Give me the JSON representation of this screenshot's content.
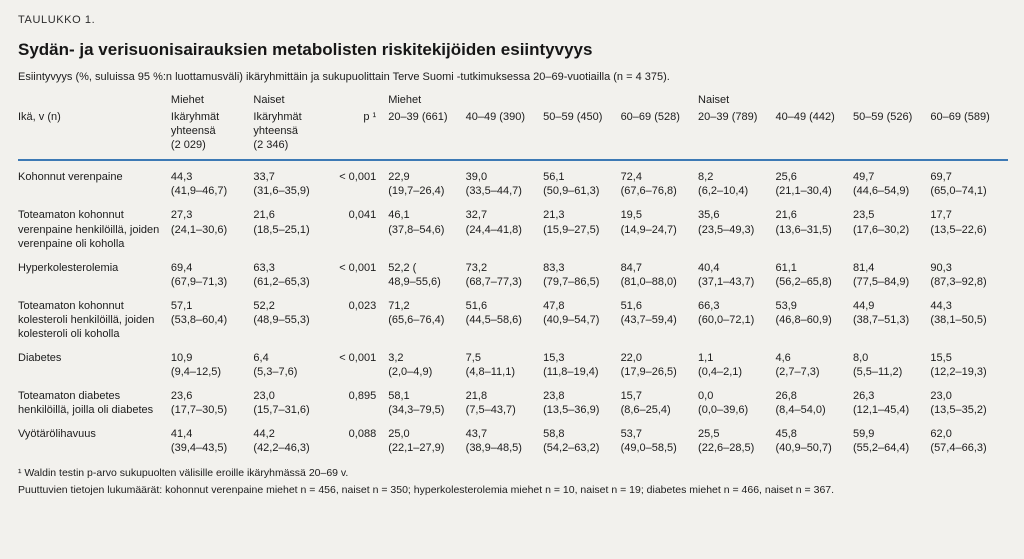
{
  "header": {
    "kicker": "TAULUKKO 1.",
    "title": "Sydän- ja verisuonisairauksien metabolisten riskitekijöiden esiintyvyys",
    "subtitle": "Esiintyvyys (%, suluissa 95 %:n luottamusväli) ikäryhmittäin ja sukupuolittain Terve Suomi -tutkimuksessa 20–69-vuotiailla (n = 4 375)."
  },
  "accent_color": "#3d79b4",
  "table": {
    "group_row": [
      {
        "label": "",
        "span": 1
      },
      {
        "label": "Miehet",
        "span": 1
      },
      {
        "label": "Naiset",
        "span": 1
      },
      {
        "label": "",
        "span": 1
      },
      {
        "label": "Miehet",
        "span": 4
      },
      {
        "label": "Naiset",
        "span": 4
      }
    ],
    "col_headers": [
      {
        "name": "col-header-age-label",
        "cls": "",
        "lines": [
          "Ikä, v (n)"
        ]
      },
      {
        "name": "col-header-men-total",
        "cls": "",
        "lines": [
          "Ikäryhmät",
          "yhteensä",
          "(2 029)"
        ]
      },
      {
        "name": "col-header-women-total",
        "cls": "",
        "lines": [
          "Ikäryhmät",
          "yhteensä",
          "(2 346)"
        ]
      },
      {
        "name": "col-header-p-value",
        "cls": "p-col",
        "lines": [
          "p ¹"
        ]
      },
      {
        "name": "col-header-men-20-39",
        "cls": "",
        "lines": [
          "20–39 (661)"
        ]
      },
      {
        "name": "col-header-men-40-49",
        "cls": "",
        "lines": [
          "40–49 (390)"
        ]
      },
      {
        "name": "col-header-men-50-59",
        "cls": "",
        "lines": [
          "50–59 (450)"
        ]
      },
      {
        "name": "col-header-men-60-69",
        "cls": "",
        "lines": [
          "60–69 (528)"
        ]
      },
      {
        "name": "col-header-women-20-39",
        "cls": "",
        "lines": [
          "20–39 (789)"
        ]
      },
      {
        "name": "col-header-women-40-49",
        "cls": "",
        "lines": [
          "40–49 (442)"
        ]
      },
      {
        "name": "col-header-women-50-59",
        "cls": "",
        "lines": [
          "50–59 (526)"
        ]
      },
      {
        "name": "col-header-women-60-69",
        "cls": "",
        "lines": [
          "60–69 (589)"
        ]
      }
    ],
    "rows": [
      {
        "label": "Kohonnut verenpaine",
        "totals": [
          {
            "v": "44,3",
            "ci": "(41,9–46,7)"
          },
          {
            "v": "33,7",
            "ci": "(31,6–35,9)"
          }
        ],
        "p": "< 0,001",
        "ages": [
          {
            "v": "22,9",
            "ci": "(19,7–26,4)"
          },
          {
            "v": "39,0",
            "ci": "(33,5–44,7)"
          },
          {
            "v": "56,1",
            "ci": "(50,9–61,3)"
          },
          {
            "v": "72,4",
            "ci": "(67,6–76,8)"
          },
          {
            "v": "8,2",
            "ci": "(6,2–10,4)"
          },
          {
            "v": "25,6",
            "ci": "(21,1–30,4)"
          },
          {
            "v": "49,7",
            "ci": "(44,6–54,9)"
          },
          {
            "v": "69,7",
            "ci": "(65,0–74,1)"
          }
        ]
      },
      {
        "label": "Toteamaton kohonnut verenpaine henkilöillä, joiden verenpaine oli koholla",
        "totals": [
          {
            "v": "27,3",
            "ci": "(24,1–30,6)"
          },
          {
            "v": "21,6",
            "ci": "(18,5–25,1)"
          }
        ],
        "p": "0,041",
        "ages": [
          {
            "v": "46,1",
            "ci": "(37,8–54,6)"
          },
          {
            "v": "32,7",
            "ci": "(24,4–41,8)"
          },
          {
            "v": "21,3",
            "ci": "(15,9–27,5)"
          },
          {
            "v": "19,5",
            "ci": "(14,9–24,7)"
          },
          {
            "v": "35,6",
            "ci": "(23,5–49,3)"
          },
          {
            "v": "21,6",
            "ci": "(13,6–31,5)"
          },
          {
            "v": "23,5",
            "ci": "(17,6–30,2)"
          },
          {
            "v": "17,7",
            "ci": "(13,5–22,6)"
          }
        ]
      },
      {
        "label": "Hyperkolesterolemia",
        "totals": [
          {
            "v": "69,4",
            "ci": "(67,9–71,3)"
          },
          {
            "v": "63,3",
            "ci": "(61,2–65,3)"
          }
        ],
        "p": "< 0,001",
        "ages": [
          {
            "v": "52,2 (",
            "ci": "48,9–55,6)"
          },
          {
            "v": "73,2",
            "ci": "(68,7–77,3)"
          },
          {
            "v": "83,3",
            "ci": "(79,7–86,5)"
          },
          {
            "v": "84,7",
            "ci": "(81,0–88,0)"
          },
          {
            "v": "40,4",
            "ci": "(37,1–43,7)"
          },
          {
            "v": "61,1",
            "ci": "(56,2–65,8)"
          },
          {
            "v": "81,4",
            "ci": "(77,5–84,9)"
          },
          {
            "v": "90,3",
            "ci": "(87,3–92,8)"
          }
        ]
      },
      {
        "label": "Toteamaton kohonnut kolesteroli henkilöillä, joiden kolesteroli oli koholla",
        "totals": [
          {
            "v": "57,1",
            "ci": "(53,8–60,4)"
          },
          {
            "v": "52,2",
            "ci": "(48,9–55,3)"
          }
        ],
        "p": "0,023",
        "ages": [
          {
            "v": "71,2",
            "ci": "(65,6–76,4)"
          },
          {
            "v": "51,6",
            "ci": "(44,5–58,6)"
          },
          {
            "v": "47,8",
            "ci": "(40,9–54,7)"
          },
          {
            "v": "51,6",
            "ci": "(43,7–59,4)"
          },
          {
            "v": "66,3",
            "ci": "(60,0–72,1)"
          },
          {
            "v": "53,9",
            "ci": "(46,8–60,9)"
          },
          {
            "v": "44,9",
            "ci": "(38,7–51,3)"
          },
          {
            "v": "44,3",
            "ci": "(38,1–50,5)"
          }
        ]
      },
      {
        "label": "Diabetes",
        "totals": [
          {
            "v": "10,9",
            "ci": "(9,4–12,5)"
          },
          {
            "v": "6,4",
            "ci": "(5,3–7,6)"
          }
        ],
        "p": "< 0,001",
        "ages": [
          {
            "v": "3,2",
            "ci": "(2,0–4,9)"
          },
          {
            "v": "7,5",
            "ci": "(4,8–11,1)"
          },
          {
            "v": "15,3",
            "ci": "(11,8–19,4)"
          },
          {
            "v": "22,0",
            "ci": "(17,9–26,5)"
          },
          {
            "v": "1,1",
            "ci": "(0,4–2,1)"
          },
          {
            "v": "4,6",
            "ci": "(2,7–7,3)"
          },
          {
            "v": "8,0",
            "ci": "(5,5–11,2)"
          },
          {
            "v": "15,5",
            "ci": "(12,2–19,3)"
          }
        ]
      },
      {
        "label": "Toteamaton diabetes henkilöillä, joilla oli diabetes",
        "totals": [
          {
            "v": "23,6",
            "ci": "(17,7–30,5)"
          },
          {
            "v": "23,0",
            "ci": "(15,7–31,6)"
          }
        ],
        "p": "0,895",
        "ages": [
          {
            "v": "58,1",
            "ci": "(34,3–79,5)"
          },
          {
            "v": "21,8",
            "ci": "(7,5–43,7)"
          },
          {
            "v": "23,8",
            "ci": "(13,5–36,9)"
          },
          {
            "v": "15,7",
            "ci": "(8,6–25,4)"
          },
          {
            "v": "0,0",
            "ci": "(0,0–39,6)"
          },
          {
            "v": "26,8",
            "ci": "(8,4–54,0)"
          },
          {
            "v": "26,3",
            "ci": "(12,1–45,4)"
          },
          {
            "v": "23,0",
            "ci": "(13,5–35,2)"
          }
        ]
      },
      {
        "label": "Vyötärölihavuus",
        "totals": [
          {
            "v": "41,4",
            "ci": "(39,4–43,5)"
          },
          {
            "v": "44,2",
            "ci": "(42,2–46,3)"
          }
        ],
        "p": "0,088",
        "ages": [
          {
            "v": "25,0",
            "ci": "(22,1–27,9)"
          },
          {
            "v": "43,7",
            "ci": "(38,9–48,5)"
          },
          {
            "v": "58,8",
            "ci": "(54,2–63,2)"
          },
          {
            "v": "53,7",
            "ci": "(49,0–58,5)"
          },
          {
            "v": "25,5",
            "ci": "(22,6–28,5)"
          },
          {
            "v": "45,8",
            "ci": "(40,9–50,7)"
          },
          {
            "v": "59,9",
            "ci": "(55,2–64,4)"
          },
          {
            "v": "62,0",
            "ci": "(57,4–66,3)"
          }
        ]
      }
    ]
  },
  "footnotes": [
    "¹ Waldin testin p-arvo sukupuolten välisille eroille ikäryhmässä 20–69 v.",
    "Puuttuvien tietojen lukumäärät: kohonnut verenpaine miehet n = 456, naiset n = 350; hyperkolesterolemia miehet n = 10, naiset n = 19; diabetes miehet n = 466, naiset n = 367."
  ]
}
